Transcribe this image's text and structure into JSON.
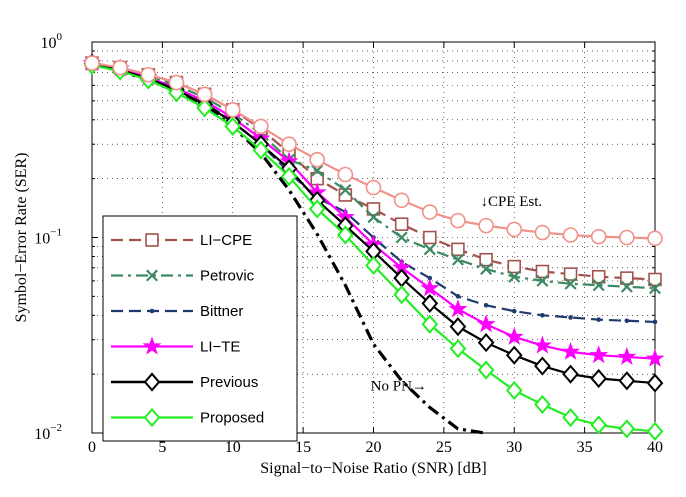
{
  "chart_data": {
    "type": "line",
    "xlabel": "Signal−to−Noise Ratio (SNR) [dB]",
    "ylabel": "Symbol−Error Rate (SER)",
    "x_scale": "linear",
    "y_scale": "log",
    "xlim": [
      0,
      40
    ],
    "ylim": [
      0.01,
      1
    ],
    "x_ticks": [
      0,
      5,
      10,
      15,
      20,
      25,
      30,
      35,
      40
    ],
    "y_ticks": [
      {
        "value": 0.01,
        "base": "10",
        "exp": "−2"
      },
      {
        "value": 0.1,
        "base": "10",
        "exp": "−1"
      },
      {
        "value": 1,
        "base": "10",
        "exp": "0"
      }
    ],
    "grid": true,
    "legend_position": "lower-left",
    "series": [
      {
        "name": "No PN",
        "color": "#000000",
        "style": "dashdot",
        "marker": "none",
        "in_legend": false,
        "x": [
          0,
          2,
          4,
          6,
          8,
          10,
          12,
          14,
          16,
          18,
          20,
          22,
          24,
          26,
          27.9
        ],
        "y": [
          0.77,
          0.71,
          0.64,
          0.56,
          0.47,
          0.37,
          0.27,
          0.175,
          0.104,
          0.057,
          0.0285,
          0.0185,
          0.0135,
          0.0105,
          0.01
        ]
      },
      {
        "name": "LI−CPE",
        "color": "#a0524c",
        "style": "dashed",
        "marker": "square",
        "in_legend": true,
        "x": [
          0,
          2,
          4,
          6,
          8,
          10,
          12,
          14,
          16,
          18,
          20,
          22,
          24,
          26,
          28,
          30,
          32,
          34,
          36,
          38,
          40
        ],
        "y": [
          0.78,
          0.74,
          0.68,
          0.62,
          0.54,
          0.45,
          0.36,
          0.27,
          0.2,
          0.165,
          0.14,
          0.117,
          0.1,
          0.087,
          0.077,
          0.071,
          0.067,
          0.065,
          0.063,
          0.062,
          0.061
        ]
      },
      {
        "name": "Petrovic",
        "color": "#3c8a64",
        "style": "dashdot",
        "marker": "x",
        "in_legend": true,
        "x": [
          0,
          2,
          4,
          6,
          8,
          10,
          12,
          14,
          16,
          18,
          20,
          22,
          24,
          26,
          28,
          30,
          32,
          34,
          36,
          38,
          40
        ],
        "y": [
          0.78,
          0.73,
          0.67,
          0.6,
          0.52,
          0.43,
          0.34,
          0.25,
          0.22,
          0.175,
          0.127,
          0.1,
          0.087,
          0.077,
          0.069,
          0.063,
          0.06,
          0.058,
          0.057,
          0.056,
          0.055
        ]
      },
      {
        "name": "Bittner",
        "color": "#1f3a6e",
        "style": "dashed",
        "marker": "dot",
        "in_legend": true,
        "x": [
          0,
          2,
          4,
          6,
          8,
          10,
          12,
          14,
          16,
          18,
          20,
          22,
          24,
          26,
          28,
          30,
          32,
          34,
          36,
          38,
          40
        ],
        "y": [
          0.78,
          0.73,
          0.66,
          0.58,
          0.49,
          0.39,
          0.3,
          0.215,
          0.16,
          0.135,
          0.1,
          0.075,
          0.062,
          0.05,
          0.045,
          0.042,
          0.04,
          0.039,
          0.038,
          0.0375,
          0.037
        ]
      },
      {
        "name": "LI−TE",
        "color": "#ff00ff",
        "style": "solid",
        "marker": "star",
        "in_legend": true,
        "x": [
          0,
          2,
          4,
          6,
          8,
          10,
          12,
          14,
          16,
          18,
          20,
          22,
          24,
          26,
          28,
          30,
          32,
          34,
          36,
          38,
          40
        ],
        "y": [
          0.78,
          0.73,
          0.66,
          0.58,
          0.5,
          0.41,
          0.32,
          0.245,
          0.17,
          0.127,
          0.092,
          0.07,
          0.055,
          0.043,
          0.036,
          0.031,
          0.028,
          0.026,
          0.025,
          0.0245,
          0.024
        ]
      },
      {
        "name": "Previous",
        "color": "#000000",
        "style": "solid",
        "marker": "diamond",
        "in_legend": true,
        "x": [
          0,
          2,
          4,
          6,
          8,
          10,
          12,
          14,
          16,
          18,
          20,
          22,
          24,
          26,
          28,
          30,
          32,
          34,
          36,
          38,
          40
        ],
        "y": [
          0.78,
          0.72,
          0.65,
          0.57,
          0.48,
          0.39,
          0.3,
          0.225,
          0.155,
          0.115,
          0.085,
          0.062,
          0.046,
          0.035,
          0.029,
          0.025,
          0.022,
          0.02,
          0.019,
          0.0185,
          0.018
        ]
      },
      {
        "name": "Proposed",
        "color": "#22ee22",
        "style": "solid",
        "marker": "diamond",
        "in_legend": true,
        "x": [
          0,
          2,
          4,
          6,
          8,
          10,
          12,
          14,
          16,
          18,
          20,
          22,
          24,
          26,
          28,
          30,
          32,
          34,
          36,
          38,
          40
        ],
        "y": [
          0.76,
          0.71,
          0.64,
          0.55,
          0.46,
          0.37,
          0.28,
          0.205,
          0.14,
          0.103,
          0.072,
          0.051,
          0.036,
          0.027,
          0.021,
          0.0165,
          0.014,
          0.012,
          0.011,
          0.0105,
          0.0102
        ]
      },
      {
        "name": "",
        "color": "#f0928a",
        "style": "solid",
        "marker": "circle",
        "in_legend": false,
        "x": [
          0,
          2,
          4,
          6,
          8,
          10,
          12,
          14,
          16,
          18,
          20,
          22,
          24,
          26,
          28,
          30,
          32,
          34,
          36,
          38,
          40
        ],
        "y": [
          0.78,
          0.74,
          0.68,
          0.62,
          0.54,
          0.45,
          0.37,
          0.3,
          0.25,
          0.21,
          0.18,
          0.155,
          0.135,
          0.122,
          0.115,
          0.11,
          0.106,
          0.103,
          0.101,
          0.1,
          0.099
        ]
      }
    ],
    "annotations": [
      {
        "text": "↓CPE Est.",
        "x": 27.6,
        "y": 0.145
      },
      {
        "text": "No PN→",
        "x": 19.8,
        "y": 0.0165
      }
    ]
  }
}
